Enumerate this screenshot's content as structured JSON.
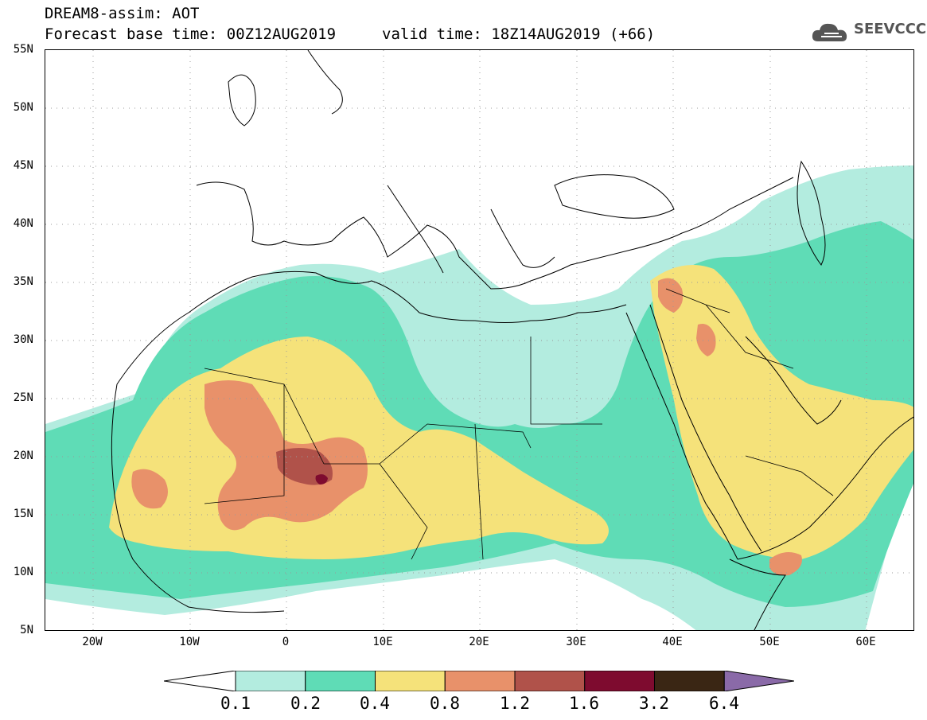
{
  "header": {
    "title": "DREAM8-assim: AOT",
    "base_time": "Forecast base time: 00Z12AUG2019",
    "valid_time": "valid time: 18Z14AUG2019 (+66)"
  },
  "logo": {
    "text": "SEEVCCC",
    "icon": "cloud-icon"
  },
  "map": {
    "lat_labels": [
      "55N",
      "50N",
      "45N",
      "40N",
      "35N",
      "30N",
      "25N",
      "20N",
      "15N",
      "10N",
      "5N"
    ],
    "lon_labels": [
      "20W",
      "10W",
      "0",
      "10E",
      "20E",
      "30E",
      "40E",
      "50E",
      "60E"
    ],
    "lon_range": [
      -25,
      65
    ],
    "lat_range": [
      5,
      55
    ]
  },
  "legend": {
    "levels": [
      "0.1",
      "0.2",
      "0.4",
      "0.8",
      "1.2",
      "1.6",
      "3.2",
      "6.4"
    ],
    "colors": [
      "#ffffff",
      "#b3ecdf",
      "#5fdcb6",
      "#f5e27a",
      "#e8916a",
      "#b0524a",
      "#7e0b2f",
      "#3a2614",
      "#8a6aa8"
    ]
  },
  "colors": {
    "c1": "#b3ecdf",
    "c2": "#5fdcb6",
    "c3": "#f5e27a",
    "c4": "#e8916a",
    "c5": "#b0524a",
    "c6": "#7e0b2f"
  }
}
